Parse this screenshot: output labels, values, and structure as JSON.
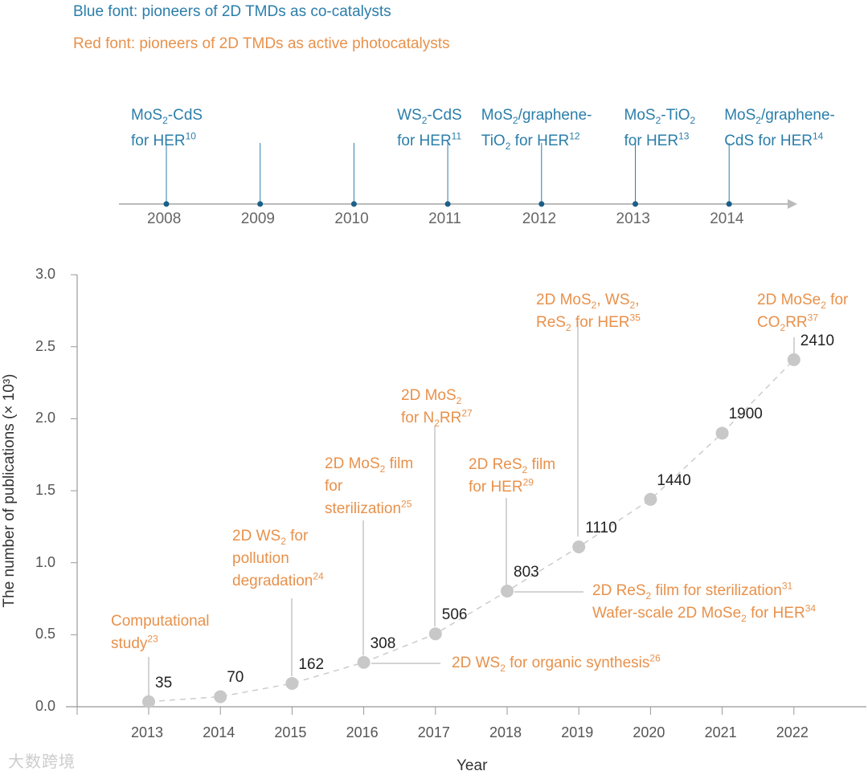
{
  "legend": {
    "blue": "Blue font: pioneers of 2D TMDs as co-catalysts",
    "red": "Red font: pioneers of 2D TMDs as active photocatalysts"
  },
  "colors": {
    "blue": "#2b7eaa",
    "orange": "#e8914b",
    "marker": "#c8c8c8",
    "axis": "#999999"
  },
  "timeline": {
    "years": [
      "2008",
      "2009",
      "2010",
      "2011",
      "2012",
      "2013",
      "2014"
    ],
    "events": [
      {
        "year": "2008",
        "lines": [
          [
            "MoS",
            {
              "sub": "2"
            },
            "-CdS"
          ],
          [
            "for HER",
            {
              "sup": "10"
            }
          ]
        ]
      },
      {
        "year": "2011",
        "lines": [
          [
            "WS",
            {
              "sub": "2"
            },
            "-CdS"
          ],
          [
            "for HER",
            {
              "sup": "11"
            }
          ]
        ]
      },
      {
        "year": "2012",
        "lines": [
          [
            "MoS",
            {
              "sub": "2"
            },
            "/graphene-"
          ],
          [
            "TiO",
            {
              "sub": "2"
            },
            " for HER",
            {
              "sup": "12"
            }
          ]
        ]
      },
      {
        "year": "2013",
        "lines": [
          [
            "MoS",
            {
              "sub": "2"
            },
            "-TiO",
            {
              "sub": "2"
            }
          ],
          [
            "for HER",
            {
              "sup": "13"
            }
          ]
        ]
      },
      {
        "year": "2014",
        "lines": [
          [
            "MoS",
            {
              "sub": "2"
            },
            "/graphene-"
          ],
          [
            "CdS for HER",
            {
              "sup": "14"
            }
          ]
        ]
      }
    ]
  },
  "chart_data": {
    "type": "line",
    "xlabel": "Year",
    "ylabel": "The number of publications (× 10³)",
    "x": [
      2013,
      2014,
      2015,
      2016,
      2017,
      2018,
      2019,
      2020,
      2021,
      2022
    ],
    "values": [
      35,
      70,
      162,
      308,
      506,
      803,
      1110,
      1440,
      1900,
      2410
    ],
    "value_labels": [
      "35",
      "70",
      "162",
      "308",
      "506",
      "803",
      "1110",
      "1440",
      "1900",
      "2410"
    ],
    "ylim": [
      0,
      3.0
    ],
    "yticks": [
      "0.0",
      "0.5",
      "1.0",
      "1.5",
      "2.0",
      "2.5",
      "3.0"
    ],
    "xticks": [
      "2013",
      "2014",
      "2015",
      "2016",
      "2017",
      "2018",
      "2019",
      "2020",
      "2021",
      "2022"
    ],
    "annotations": [
      {
        "year": 2013,
        "lines": [
          [
            "Computational"
          ],
          [
            "study",
            {
              "sup": "23"
            }
          ]
        ]
      },
      {
        "year": 2015,
        "lines": [
          [
            "2D WS",
            {
              "sub": "2"
            },
            " for"
          ],
          [
            "pollution"
          ],
          [
            "degradation",
            {
              "sup": "24"
            }
          ]
        ]
      },
      {
        "year": 2016,
        "lines": [
          [
            "2D MoS",
            {
              "sub": "2"
            },
            " film"
          ],
          [
            "for"
          ],
          [
            "sterilization",
            {
              "sup": "25"
            }
          ]
        ]
      },
      {
        "year": 2017,
        "lines": [
          [
            "2D MoS",
            {
              "sub": "2"
            }
          ],
          [
            "for N",
            {
              "sub": "2"
            },
            "RR",
            {
              "sup": "27"
            }
          ]
        ]
      },
      {
        "year": 2018,
        "lines": [
          [
            "2D ReS",
            {
              "sub": "2"
            },
            " film"
          ],
          [
            "for HER",
            {
              "sup": "29"
            }
          ]
        ]
      },
      {
        "year": 2019,
        "lines": [
          [
            "2D MoS",
            {
              "sub": "2"
            },
            ", WS",
            {
              "sub": "2"
            },
            ","
          ],
          [
            "ReS",
            {
              "sub": "2"
            },
            " for HER",
            {
              "sup": "35"
            }
          ]
        ]
      },
      {
        "year": 2022,
        "lines": [
          [
            "2D MoSe",
            {
              "sub": "2"
            },
            " for"
          ],
          [
            "CO",
            {
              "sub": "2"
            },
            "RR",
            {
              "sup": "37"
            }
          ]
        ]
      },
      {
        "year": 2016,
        "lines": [
          [
            "2D WS",
            {
              "sub": "2"
            },
            " for organic synthesis",
            {
              "sup": "26"
            }
          ]
        ]
      },
      {
        "year": 2018,
        "lines": [
          [
            "2D ReS",
            {
              "sub": "2"
            },
            " film for sterilization",
            {
              "sup": "31"
            }
          ],
          [
            "Wafer-scale 2D MoSe",
            {
              "sub": "2"
            },
            " for HER",
            {
              "sup": "34"
            }
          ]
        ]
      }
    ]
  },
  "watermark": "大数跨境"
}
